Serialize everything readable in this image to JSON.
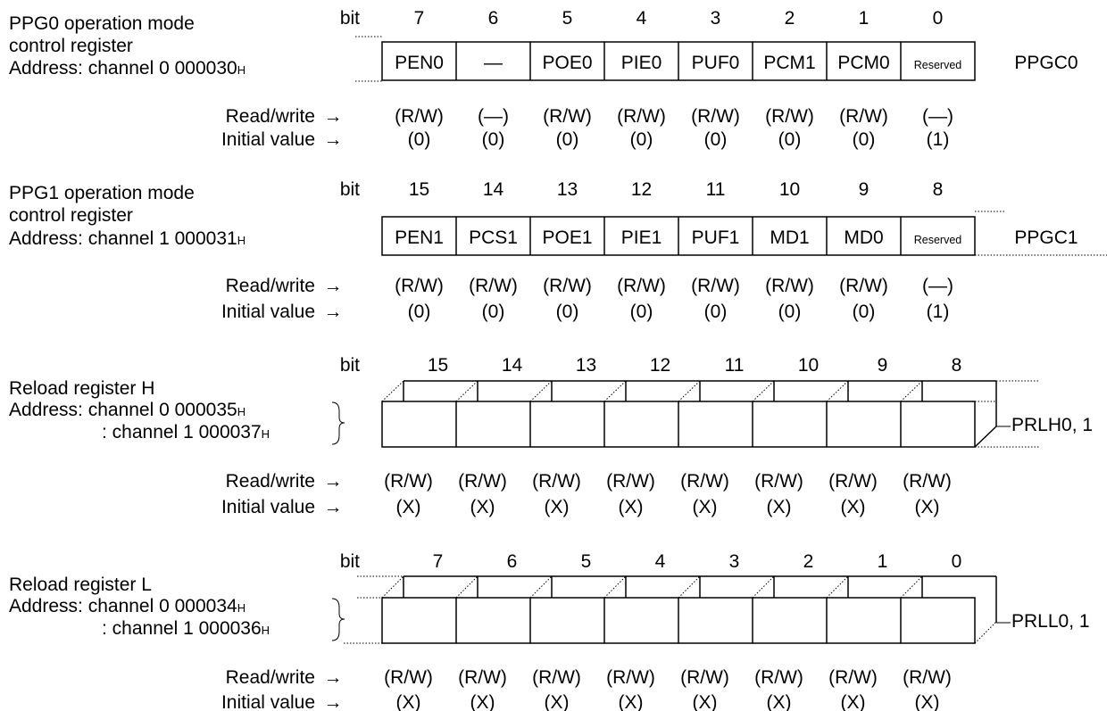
{
  "arrow": "→",
  "registers": [
    {
      "title": [
        "PPG0 operation mode",
        "control register"
      ],
      "address_prefix": "Address",
      "addresses": [
        [
          "channel 0 000030",
          "H"
        ]
      ],
      "bit_label": "bit",
      "bits": [
        "7",
        "6",
        "5",
        "4",
        "3",
        "2",
        "1",
        "0"
      ],
      "cells": [
        "PEN0",
        "—",
        "POE0",
        "PIE0",
        "PUF0",
        "PCM1",
        "PCM0",
        "Reserved"
      ],
      "name": "PPGC0",
      "rw_label": "Read/write",
      "rw": [
        "(R/W)",
        "(—)",
        "(R/W)",
        "(R/W)",
        "(R/W)",
        "(R/W)",
        "(R/W)",
        "(—)"
      ],
      "init_label": "Initial value",
      "init": [
        "(0)",
        "(0)",
        "(0)",
        "(0)",
        "(0)",
        "(0)",
        "(0)",
        "(1)"
      ]
    },
    {
      "title": [
        "PPG1 operation mode",
        "control register"
      ],
      "address_prefix": "Address",
      "addresses": [
        [
          "channel 1 000031",
          "H"
        ]
      ],
      "bit_label": "bit",
      "bits": [
        "15",
        "14",
        "13",
        "12",
        "11",
        "10",
        "9",
        "8"
      ],
      "cells": [
        "PEN1",
        "PCS1",
        "POE1",
        "PIE1",
        "PUF1",
        "MD1",
        "MD0",
        "Reserved"
      ],
      "name": "PPGC1",
      "rw_label": "Read/write",
      "rw": [
        "(R/W)",
        "(R/W)",
        "(R/W)",
        "(R/W)",
        "(R/W)",
        "(R/W)",
        "(R/W)",
        "(—)"
      ],
      "init_label": "Initial value",
      "init": [
        "(0)",
        "(0)",
        "(0)",
        "(0)",
        "(0)",
        "(0)",
        "(0)",
        "(1)"
      ]
    },
    {
      "title": [
        "Reload register H"
      ],
      "address_prefix": "Address",
      "addresses": [
        [
          "channel 0 000035",
          "H"
        ],
        [
          "channel 1 000037",
          "H"
        ]
      ],
      "bit_label": "bit",
      "bits": [
        "15",
        "14",
        "13",
        "12",
        "11",
        "10",
        "9",
        "8"
      ],
      "name": "PRLH0, 1",
      "rw_label": "Read/write",
      "rw": [
        "(R/W)",
        "(R/W)",
        "(R/W)",
        "(R/W)",
        "(R/W)",
        "(R/W)",
        "(R/W)",
        "(R/W)"
      ],
      "init_label": "Initial value",
      "init": [
        "(X)",
        "(X)",
        "(X)",
        "(X)",
        "(X)",
        "(X)",
        "(X)",
        "(X)"
      ]
    },
    {
      "title": [
        "Reload register L"
      ],
      "address_prefix": "Address",
      "addresses": [
        [
          "channel 0 000034",
          "H"
        ],
        [
          "channel 1 000036",
          "H"
        ]
      ],
      "bit_label": "bit",
      "bits": [
        "7",
        "6",
        "5",
        "4",
        "3",
        "2",
        "1",
        "0"
      ],
      "name": "PRLL0, 1",
      "rw_label": "Read/write",
      "rw": [
        "(R/W)",
        "(R/W)",
        "(R/W)",
        "(R/W)",
        "(R/W)",
        "(R/W)",
        "(R/W)",
        "(R/W)"
      ],
      "init_label": "Initial value",
      "init": [
        "(X)",
        "(X)",
        "(X)",
        "(X)",
        "(X)",
        "(X)",
        "(X)",
        "(X)"
      ]
    }
  ]
}
